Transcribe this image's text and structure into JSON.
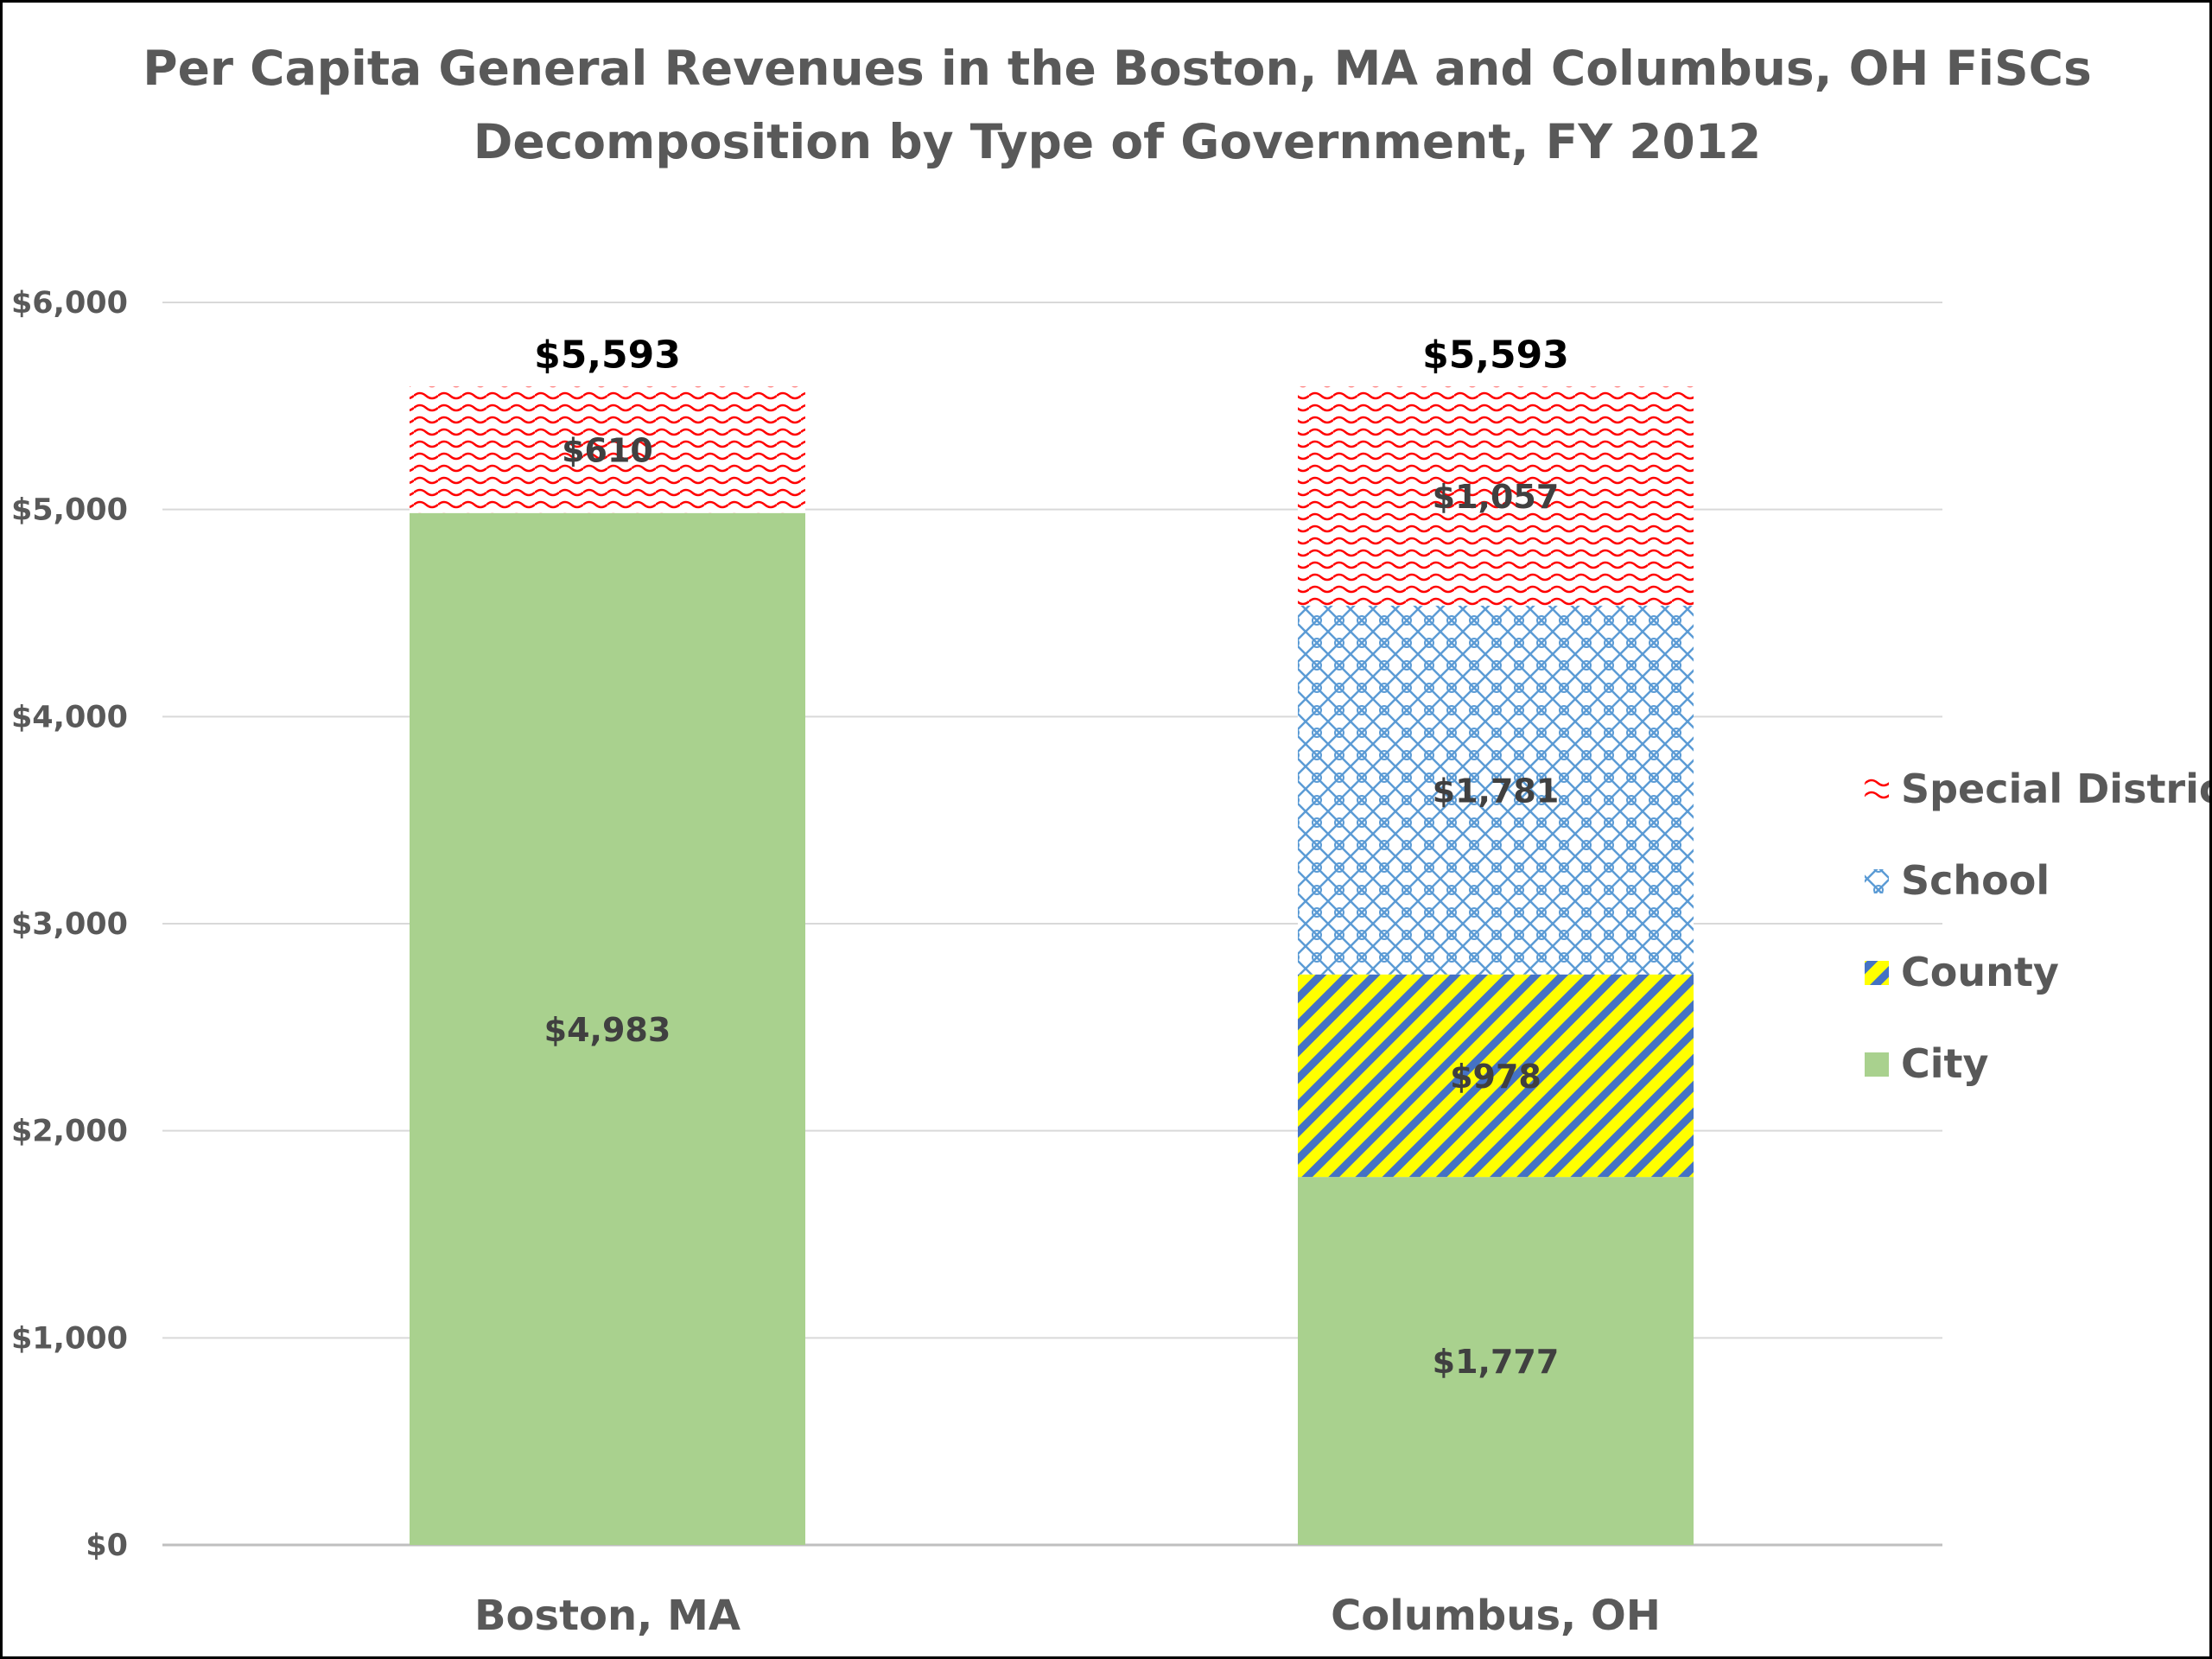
{
  "chart_data": {
    "type": "bar",
    "stacked": true,
    "title": "Per Capita General Revenues in the Boston, MA and Columbus, OH FiSCs",
    "subtitle": "Decomposition by Type of Government, FY 2012",
    "xlabel": "",
    "ylabel": "",
    "categories": [
      "Boston, MA",
      "Columbus, OH"
    ],
    "ylim": [
      0,
      6000
    ],
    "yticks": [
      0,
      1000,
      2000,
      3000,
      4000,
      5000,
      6000
    ],
    "ytick_labels": [
      "$0",
      "$1,000",
      "$2,000",
      "$3,000",
      "$4,000",
      "$5,000",
      "$6,000"
    ],
    "grid": true,
    "legend_position": "right",
    "series": [
      {
        "name": "City",
        "values": [
          4983,
          1777
        ],
        "value_labels": [
          "$4,983",
          "$1,777"
        ],
        "color": "#a9d18e",
        "pattern": "solid"
      },
      {
        "name": "County",
        "values": [
          0,
          978
        ],
        "value_labels": [
          "",
          "$978"
        ],
        "color": "#ffff00",
        "pattern_color": "#4472c4",
        "pattern": "diagonal-stripes"
      },
      {
        "name": "School",
        "values": [
          0,
          1781
        ],
        "value_labels": [
          "",
          "$1,781"
        ],
        "color": "#ffffff",
        "pattern_color": "#5b9bd5",
        "pattern": "crosshatch"
      },
      {
        "name": "Special District",
        "values": [
          610,
          1057
        ],
        "value_labels": [
          "$610",
          "$1,057"
        ],
        "color": "#ffffff",
        "pattern_color": "#ff0000",
        "pattern": "wave"
      }
    ],
    "totals": [
      5593,
      5593
    ],
    "total_labels": [
      "$5,593",
      "$5,593"
    ],
    "legend_order": [
      "Special District",
      "School",
      "County",
      "City"
    ]
  }
}
